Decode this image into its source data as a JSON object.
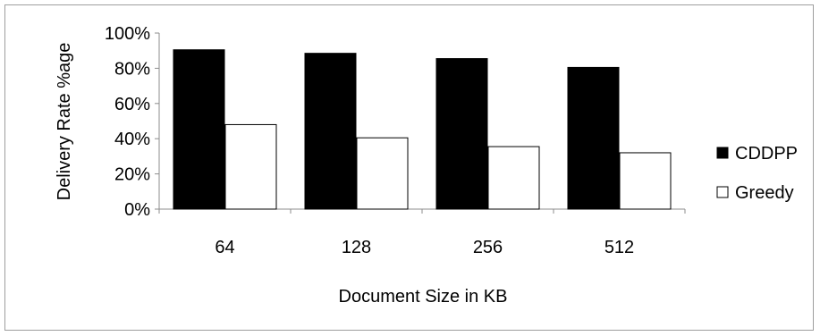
{
  "chart_data": {
    "type": "bar",
    "categories": [
      "64",
      "128",
      "256",
      "512"
    ],
    "series": [
      {
        "name": "CDDPP",
        "values": [
          90.5,
          88.5,
          85.5,
          80.5
        ],
        "color": "#000000"
      },
      {
        "name": "Greedy",
        "values": [
          48,
          40.5,
          35.5,
          32
        ],
        "color": "#ffffff"
      }
    ],
    "xlabel": "Document Size in KB",
    "ylabel": "Delivery Rate %age",
    "ylim": [
      0,
      100
    ],
    "yticks": [
      "0%",
      "20%",
      "40%",
      "60%",
      "80%",
      "100%"
    ],
    "grid": false,
    "legend_position": "right"
  }
}
